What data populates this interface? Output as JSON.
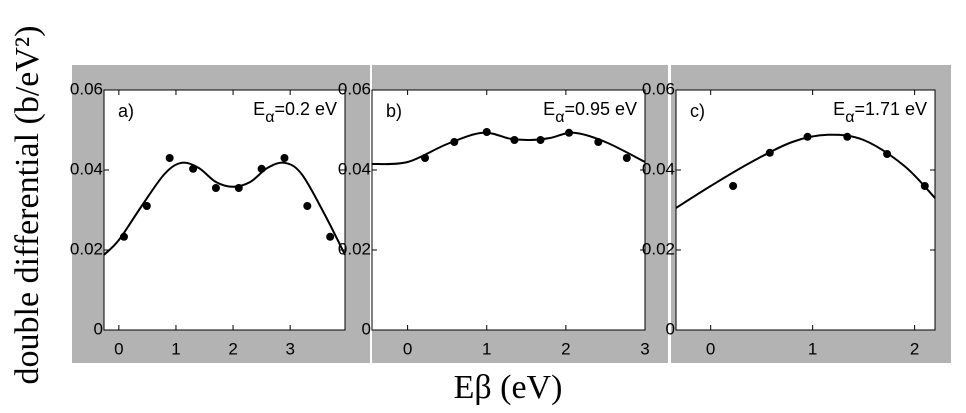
{
  "ylabel": "double differential (b/eV²)",
  "xlabel": "Eβ (eV)",
  "chart_data": [
    {
      "type": "line",
      "label": "a)",
      "annotation": {
        "symbol": "E",
        "subscript": "α",
        "text": "=0.2 eV"
      },
      "xlim": [
        -0.26,
        3.96
      ],
      "xticks": [
        0,
        1,
        2,
        3
      ],
      "ylim": [
        0,
        0.06
      ],
      "yticks": [
        0,
        0.02,
        0.04,
        0.06
      ],
      "color": "#000000",
      "points": {
        "x": [
          0.09,
          0.49,
          0.89,
          1.3,
          1.7,
          2.1,
          2.5,
          2.9,
          3.3,
          3.7
        ],
        "values": [
          0.0233,
          0.031,
          0.043,
          0.0403,
          0.0355,
          0.0355,
          0.0403,
          0.043,
          0.031,
          0.0233
        ]
      },
      "curve": {
        "x": [
          -0.26,
          0,
          0.4,
          0.8,
          1.1,
          1.4,
          1.7,
          2.0,
          2.3,
          2.6,
          2.9,
          3.2,
          3.6,
          3.96
        ],
        "values": [
          0.0188,
          0.0225,
          0.031,
          0.039,
          0.0418,
          0.0405,
          0.037,
          0.0358,
          0.037,
          0.0405,
          0.0418,
          0.039,
          0.029,
          0.0188
        ]
      }
    },
    {
      "type": "line",
      "label": "b)",
      "annotation": {
        "symbol": "E",
        "subscript": "α",
        "text": "=0.95 eV"
      },
      "xlim": [
        -0.45,
        3.0
      ],
      "xticks": [
        0,
        1,
        2,
        3
      ],
      "ylim": [
        0,
        0.06
      ],
      "yticks": [
        0,
        0.02,
        0.04,
        0.06
      ],
      "color": "#000000",
      "points": {
        "x": [
          0.22,
          0.59,
          1.0,
          1.35,
          1.68,
          2.04,
          2.41,
          2.77
        ],
        "values": [
          0.043,
          0.047,
          0.0495,
          0.0475,
          0.0475,
          0.0493,
          0.047,
          0.043
        ]
      },
      "curve": {
        "x": [
          -0.45,
          0,
          0.5,
          0.95,
          1.3,
          1.55,
          1.8,
          2.1,
          2.5,
          3.0
        ],
        "values": [
          0.0415,
          0.042,
          0.0465,
          0.0493,
          0.0478,
          0.0475,
          0.048,
          0.0493,
          0.047,
          0.042
        ]
      }
    },
    {
      "type": "line",
      "label": "c)",
      "annotation": {
        "symbol": "E",
        "subscript": "α",
        "text": "=1.71 eV"
      },
      "xlim": [
        -0.34,
        2.2
      ],
      "xticks": [
        0,
        1,
        2
      ],
      "ylim": [
        0,
        0.06
      ],
      "yticks": [
        0,
        0.02,
        0.04,
        0.06
      ],
      "color": "#000000",
      "points": {
        "x": [
          0.22,
          0.58,
          0.95,
          1.34,
          1.73,
          2.1
        ],
        "values": [
          0.036,
          0.0443,
          0.0483,
          0.0483,
          0.044,
          0.036
        ]
      },
      "curve": {
        "x": [
          -0.34,
          0,
          0.4,
          0.8,
          1.15,
          1.5,
          1.9,
          2.2
        ],
        "values": [
          0.0305,
          0.036,
          0.042,
          0.047,
          0.0488,
          0.0475,
          0.041,
          0.033
        ]
      }
    }
  ]
}
